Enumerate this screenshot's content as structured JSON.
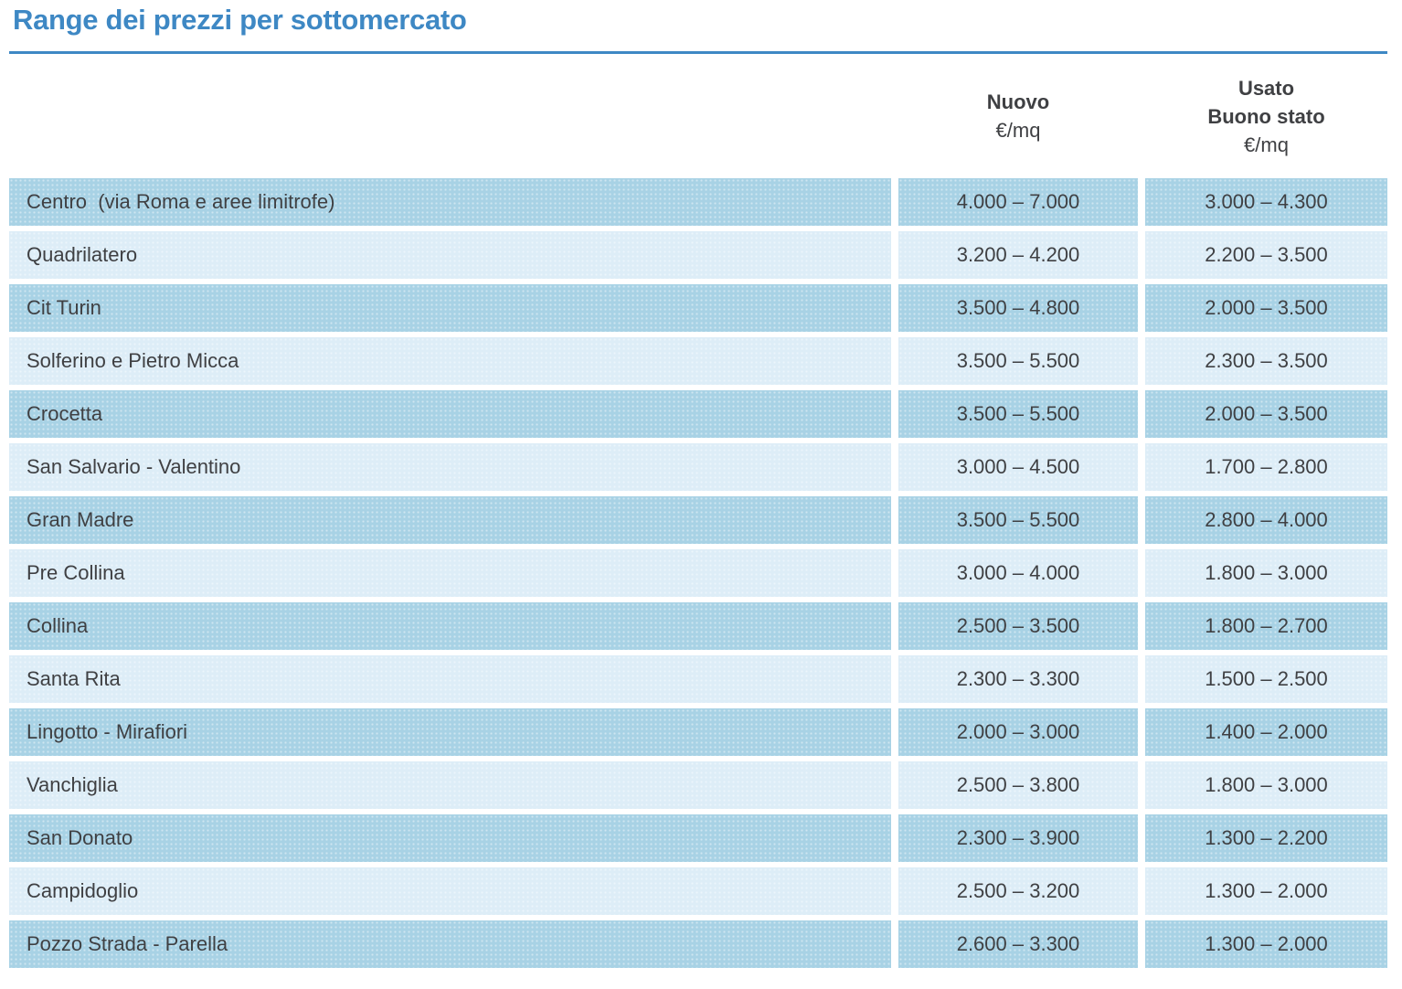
{
  "title": "Range dei prezzi per sottomercato",
  "colors": {
    "accent_blue": "#3e88c4",
    "row_dark": "#a8d2e5",
    "row_light": "#ddedf7",
    "text": "#3f4043"
  },
  "header": {
    "nuovo": {
      "line1": "Nuovo",
      "line2": "€/mq"
    },
    "usato": {
      "line1": "Usato",
      "line2": "Buono stato",
      "line3": "€/mq"
    }
  },
  "rows": [
    {
      "name": "Centro  (via Roma e aree limitrofe)",
      "nuovo": "4.000 – 7.000",
      "usato": "3.000 – 4.300"
    },
    {
      "name": "Quadrilatero",
      "nuovo": "3.200 – 4.200",
      "usato": "2.200 – 3.500"
    },
    {
      "name": "Cit Turin",
      "nuovo": "3.500 – 4.800",
      "usato": "2.000 – 3.500"
    },
    {
      "name": "Solferino e Pietro Micca",
      "nuovo": "3.500 – 5.500",
      "usato": "2.300 – 3.500"
    },
    {
      "name": "Crocetta",
      "nuovo": "3.500 – 5.500",
      "usato": "2.000 – 3.500"
    },
    {
      "name": "San Salvario - Valentino",
      "nuovo": "3.000 – 4.500",
      "usato": "1.700 – 2.800"
    },
    {
      "name": "Gran Madre",
      "nuovo": "3.500 – 5.500",
      "usato": "2.800 – 4.000"
    },
    {
      "name": "Pre Collina",
      "nuovo": "3.000 – 4.000",
      "usato": "1.800 – 3.000"
    },
    {
      "name": "Collina",
      "nuovo": "2.500 – 3.500",
      "usato": "1.800 – 2.700"
    },
    {
      "name": "Santa Rita",
      "nuovo": "2.300 – 3.300",
      "usato": "1.500 – 2.500"
    },
    {
      "name": "Lingotto - Mirafiori",
      "nuovo": "2.000 – 3.000",
      "usato": "1.400 – 2.000"
    },
    {
      "name": "Vanchiglia",
      "nuovo": "2.500 – 3.800",
      "usato": "1.800 – 3.000"
    },
    {
      "name": "San Donato",
      "nuovo": "2.300 – 3.900",
      "usato": "1.300 – 2.200"
    },
    {
      "name": "Campidoglio",
      "nuovo": "2.500 – 3.200",
      "usato": "1.300 – 2.000"
    },
    {
      "name": "Pozzo Strada - Parella",
      "nuovo": "2.600 – 3.300",
      "usato": "1.300 – 2.000"
    }
  ]
}
